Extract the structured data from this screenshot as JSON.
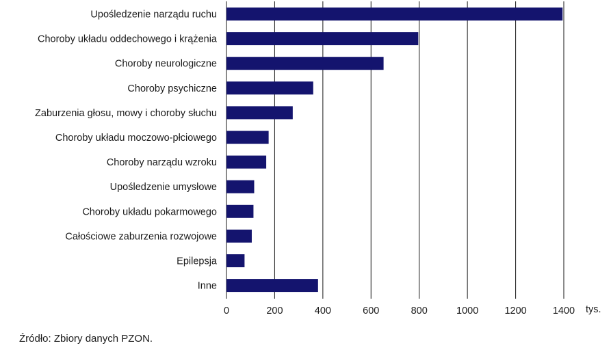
{
  "chart_data": {
    "type": "bar",
    "orientation": "horizontal",
    "categories": [
      "Upośledzenie narządu ruchu",
      "Choroby układu oddechowego i krążenia",
      "Choroby neurologiczne",
      "Choroby psychiczne",
      "Zaburzenia głosu, mowy i choroby słuchu",
      "Choroby układu moczowo-płciowego",
      "Choroby narządu wzroku",
      "Upośledzenie umysłowe",
      "Choroby układu pokarmowego",
      "Całościowe zaburzenia rozwojowe",
      "Epilepsja",
      "Inne"
    ],
    "values": [
      1395,
      796,
      652,
      360,
      275,
      175,
      165,
      115,
      112,
      105,
      75,
      380
    ],
    "xlim": [
      0,
      1400
    ],
    "xticks": [
      "0",
      "200",
      "400",
      "600",
      "800",
      "1000",
      "1200",
      "1400"
    ],
    "xunit": "tys.",
    "grid": "vertical",
    "bar_color": "#14146e"
  },
  "source": "Źródło: Zbiory danych PZON."
}
